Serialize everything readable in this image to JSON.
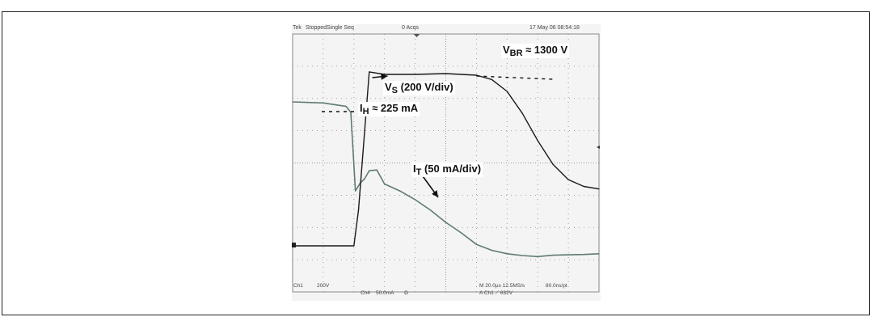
{
  "header": {
    "brand": "Tek",
    "state": "Stopped",
    "mode": "Single Seq",
    "acqs": "0 Acqs",
    "datetime": "17 May 06 08:54:18"
  },
  "footer": {
    "ch1_label": "Ch1",
    "ch1_scale": "200V",
    "ch4_label": "Ch4",
    "ch4_scale": "50.0mA",
    "ch4_unit": "Ω",
    "timebase": "M 20.0µs 12.5MS/s",
    "trigger": "A  Ch1  ⟋  632V",
    "resolution": "80.0ns/pt"
  },
  "annotations": {
    "vbr_main": "V",
    "vbr_sub": "BR",
    "vbr_value": " ≈ 1300 V",
    "vs_main": "V",
    "vs_sub": "S",
    "vs_value": " (200 V/div)",
    "ih_main": "I",
    "ih_sub": "H",
    "ih_value": " ≈ 225 mA",
    "it_main": "I",
    "it_sub": "T",
    "it_value": " (50 mA/div)"
  },
  "colors": {
    "vs_trace": "#1a1a1a",
    "it_trace": "#5f7b74",
    "grid": "#8a8a8a",
    "screen": "#f4f4f4"
  },
  "chart_data": {
    "type": "line",
    "x_unit": "µs",
    "x_range": [
      0,
      200
    ],
    "series": [
      {
        "name": "Vs",
        "y_unit": "V",
        "x": [
          0,
          40,
          43,
          50,
          60,
          80,
          100,
          120,
          130,
          140,
          150,
          160,
          170,
          180,
          190,
          200
        ],
        "y": [
          -720,
          -720,
          -300,
          1330,
          1300,
          1300,
          1310,
          1290,
          1240,
          1100,
          840,
          520,
          240,
          60,
          -20,
          -50
        ]
      },
      {
        "name": "It",
        "y_unit": "mA",
        "x": [
          0,
          20,
          35,
          38,
          41,
          44,
          47,
          50,
          55,
          60,
          70,
          80,
          90,
          100,
          110,
          120,
          130,
          140,
          150,
          160,
          170,
          180,
          190,
          200
        ],
        "y": [
          225,
          222,
          212,
          195,
          -30,
          -8,
          5,
          28,
          30,
          -10,
          -30,
          -55,
          -85,
          -120,
          -150,
          -183,
          -200,
          -210,
          -215,
          -218,
          -214,
          -213,
          -212,
          -210
        ]
      }
    ]
  }
}
